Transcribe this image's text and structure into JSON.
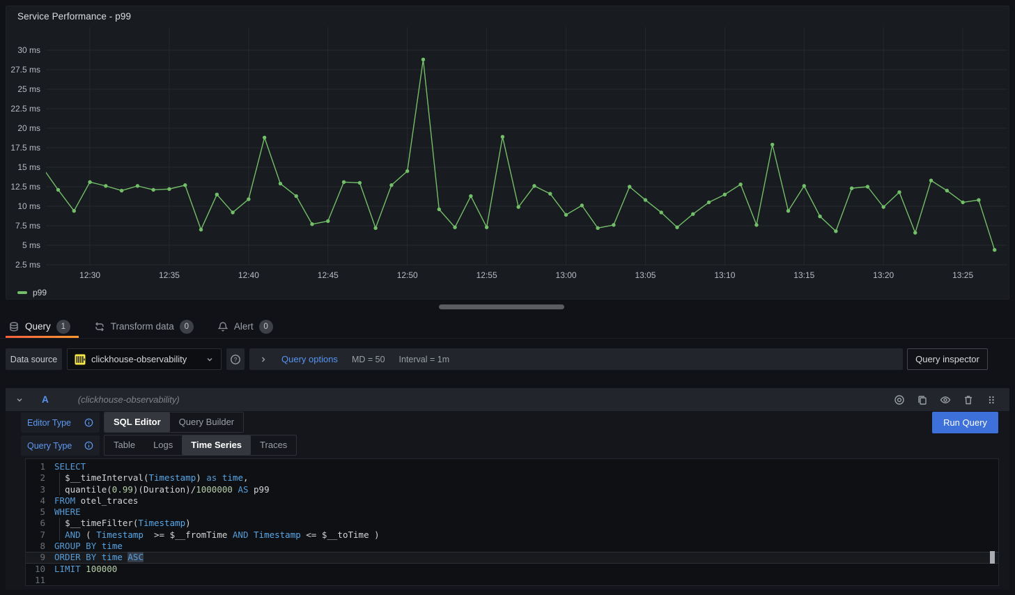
{
  "panel": {
    "title": "Service Performance - p99",
    "legend": "p99"
  },
  "chart_data": {
    "type": "line",
    "title": "Service Performance - p99",
    "x": [
      "12:27",
      "12:28",
      "12:29",
      "12:30",
      "12:31",
      "12:32",
      "12:33",
      "12:34",
      "12:35",
      "12:36",
      "12:37",
      "12:38",
      "12:39",
      "12:40",
      "12:41",
      "12:42",
      "12:43",
      "12:44",
      "12:45",
      "12:46",
      "12:47",
      "12:48",
      "12:49",
      "12:50",
      "12:51",
      "12:52",
      "12:53",
      "12:54",
      "12:55",
      "12:56",
      "12:57",
      "12:58",
      "12:59",
      "13:00",
      "13:01",
      "13:02",
      "13:03",
      "13:04",
      "13:05",
      "13:06",
      "13:07",
      "13:08",
      "13:09",
      "13:10",
      "13:11",
      "13:12",
      "13:13",
      "13:14",
      "13:15",
      "13:16",
      "13:17",
      "13:18",
      "13:19",
      "13:20",
      "13:21",
      "13:22",
      "13:23",
      "13:24",
      "13:25",
      "13:26",
      "13:27"
    ],
    "series": [
      {
        "name": "p99",
        "color": "#73bf69",
        "values": [
          15.0,
          12.1,
          9.4,
          13.1,
          12.6,
          12.0,
          12.6,
          12.1,
          12.2,
          12.7,
          7.0,
          11.5,
          9.2,
          10.9,
          18.8,
          12.9,
          11.3,
          7.7,
          8.1,
          13.1,
          13.0,
          7.2,
          12.7,
          14.5,
          28.8,
          9.6,
          7.3,
          11.3,
          7.3,
          18.9,
          9.9,
          12.6,
          11.6,
          8.9,
          10.1,
          7.2,
          7.6,
          12.5,
          10.8,
          9.2,
          7.3,
          9.0,
          10.5,
          11.5,
          12.8,
          7.6,
          17.9,
          9.4,
          12.6,
          8.7,
          6.8,
          12.3,
          12.5,
          9.9,
          11.8,
          6.6,
          13.3,
          12.0,
          10.5,
          10.8,
          4.4
        ]
      }
    ],
    "x_tick_labels": [
      "12:30",
      "12:35",
      "12:40",
      "12:45",
      "12:50",
      "12:55",
      "13:00",
      "13:05",
      "13:10",
      "13:15",
      "13:20",
      "13:25"
    ],
    "y_ticks": [
      30,
      27.5,
      25,
      22.5,
      20,
      17.5,
      15,
      12.5,
      10,
      7.5,
      5,
      2.5
    ],
    "y_unit": "ms",
    "ylim": [
      1.2,
      31.4
    ],
    "grid": true,
    "legend_position": "bottom-left"
  },
  "tabs": [
    {
      "label": "Query",
      "count": "1",
      "active": true
    },
    {
      "label": "Transform data",
      "count": "0",
      "active": false
    },
    {
      "label": "Alert",
      "count": "0",
      "active": false
    }
  ],
  "toolbar": {
    "datasource_label": "Data source",
    "datasource_value": "clickhouse-observability",
    "help": "?",
    "query_options_label": "Query options",
    "md": "MD = 50",
    "interval": "Interval = 1m",
    "inspector_label": "Query inspector"
  },
  "query_row": {
    "letter": "A",
    "datasource_hint": "(clickhouse-observability)"
  },
  "editor": {
    "editor_type_label": "Editor Type",
    "editor_types": [
      "SQL Editor",
      "Query Builder"
    ],
    "editor_type_active": "SQL Editor",
    "query_type_label": "Query Type",
    "query_types": [
      "Table",
      "Logs",
      "Time Series",
      "Traces"
    ],
    "query_type_active": "Time Series",
    "run_button": "Run Query"
  },
  "code": {
    "lines": [
      {
        "n": "1",
        "tokens": [
          [
            "k",
            "SELECT"
          ]
        ]
      },
      {
        "n": "2",
        "guide": true,
        "tokens": [
          [
            "t",
            "  "
          ],
          [
            "t",
            "$__timeInterval("
          ],
          [
            "i",
            "Timestamp"
          ],
          [
            "t",
            ") "
          ],
          [
            "k",
            "as"
          ],
          [
            "t",
            " "
          ],
          [
            "i",
            "time"
          ],
          [
            "t",
            ","
          ]
        ]
      },
      {
        "n": "3",
        "guide": true,
        "tokens": [
          [
            "t",
            "  quantile("
          ],
          [
            "n",
            "0.99"
          ],
          [
            "t",
            ")(Duration)/"
          ],
          [
            "n",
            "1000000"
          ],
          [
            "t",
            " "
          ],
          [
            "k",
            "AS"
          ],
          [
            "t",
            " p99"
          ]
        ]
      },
      {
        "n": "4",
        "tokens": [
          [
            "k",
            "FROM"
          ],
          [
            "t",
            " otel_traces"
          ]
        ]
      },
      {
        "n": "5",
        "tokens": [
          [
            "k",
            "WHERE"
          ]
        ]
      },
      {
        "n": "6",
        "guide": true,
        "tokens": [
          [
            "t",
            "  "
          ],
          [
            "t",
            "$__timeFilter("
          ],
          [
            "i",
            "Timestamp"
          ],
          [
            "t",
            ")"
          ]
        ]
      },
      {
        "n": "7",
        "guide": true,
        "tokens": [
          [
            "t",
            "  "
          ],
          [
            "k",
            "AND"
          ],
          [
            "t",
            " ( "
          ],
          [
            "i",
            "Timestamp"
          ],
          [
            "t",
            "  >= "
          ],
          [
            "t",
            "$__fromTime "
          ],
          [
            "k",
            "AND"
          ],
          [
            "t",
            " "
          ],
          [
            "i",
            "Timestamp"
          ],
          [
            "t",
            " <= "
          ],
          [
            "t",
            "$__toTime )"
          ]
        ]
      },
      {
        "n": "8",
        "tokens": [
          [
            "k",
            "GROUP"
          ],
          [
            "t",
            " "
          ],
          [
            "k",
            "BY"
          ],
          [
            "t",
            " "
          ],
          [
            "i",
            "time"
          ]
        ]
      },
      {
        "n": "9",
        "current": true,
        "cursor": true,
        "tokens": [
          [
            "k",
            "ORDER"
          ],
          [
            "t",
            " "
          ],
          [
            "k",
            "BY"
          ],
          [
            "t",
            " "
          ],
          [
            "i",
            "time"
          ],
          [
            "t",
            " "
          ],
          [
            "k",
            "ASC",
            "sel"
          ]
        ]
      },
      {
        "n": "10",
        "tokens": [
          [
            "k",
            "LIMIT"
          ],
          [
            "t",
            " "
          ],
          [
            "n",
            "100000"
          ]
        ]
      },
      {
        "n": "11",
        "tokens": []
      }
    ]
  },
  "colors": {
    "page_bg": "#111217",
    "panel_bg": "#181b1f",
    "series_green": "#73bf69",
    "run_button_blue": "#3d71d9",
    "link_blue": "#5794f2",
    "tab_underline": "linear-gradient(90deg,#f55f3e,#ff9830)",
    "clickhouse_yellow": "#f7e648",
    "keyword_blue": "#569cd6",
    "identifier_blue": "#58a8e8",
    "number_green": "#b5cea8",
    "selection_bg": "#343c49"
  },
  "icons": {
    "query-tab": "database-icon",
    "transform-tab": "shuffle-arrows-icon",
    "alert-tab": "bell-icon",
    "datasource": "clickhouse-logo-icon",
    "help": "question-circle-icon",
    "info": "info-circle-icon",
    "row_actions": [
      "record-icon",
      "copy-icon",
      "eye-icon",
      "trash-icon",
      "drag-handle-icon"
    ]
  }
}
